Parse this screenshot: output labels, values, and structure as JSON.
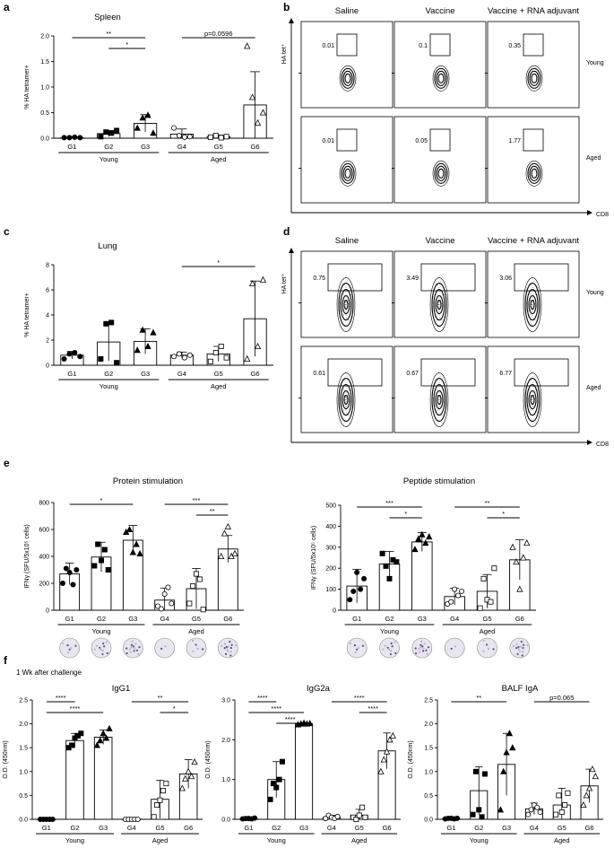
{
  "panels": {
    "a": {
      "label": "a",
      "title": "Spleen",
      "ylabel": "% HA tetramer+"
    },
    "b": {
      "label": "b",
      "ylabel": "HA tet⁺",
      "xlabel": "CD8",
      "cols": [
        "Saline",
        "Vaccine",
        "Vaccine + RNA adjuvant"
      ],
      "rows": [
        "Young",
        "Aged"
      ],
      "values": [
        [
          "0.01",
          "0.1",
          "0.35"
        ],
        [
          "0.01",
          "0.05",
          "1.77"
        ]
      ]
    },
    "c": {
      "label": "c",
      "title": "Lung",
      "ylabel": "% HA tetramer+"
    },
    "d": {
      "label": "d",
      "ylabel": "HA tet⁺",
      "xlabel": "CD8",
      "cols": [
        "Saline",
        "Vaccine",
        "Vaccine + RNA adjuvant"
      ],
      "rows": [
        "Young",
        "Aged"
      ],
      "values": [
        [
          "0.75",
          "3.49",
          "3.06"
        ],
        [
          "0.61",
          "0.67",
          "6.77"
        ]
      ]
    },
    "e": {
      "label": "e"
    },
    "f": {
      "label": "f",
      "note": "1 Wk after challenge"
    }
  },
  "colors": {
    "axis": "#000000",
    "spot_dark": "#5b4a86",
    "spot_light": "#b9b0d0",
    "well": "#e8e6ee"
  },
  "chart_data": [
    {
      "id": "a",
      "type": "bar",
      "title": "Spleen",
      "ylabel": "% HA tetramer+",
      "ylim": [
        0,
        2.0
      ],
      "yticks": [
        "0.0",
        "0.5",
        "1.0",
        "1.5",
        "2.0"
      ],
      "ytick_values": [
        0,
        0.5,
        1,
        1.5,
        2
      ],
      "categories": [
        "G1",
        "G2",
        "G3",
        "G4",
        "G5",
        "G6"
      ],
      "groups": [
        "Young",
        "Aged"
      ],
      "values": [
        0.01,
        0.09,
        0.29,
        0.08,
        0.03,
        0.65
      ],
      "errors": [
        0.02,
        0.06,
        0.17,
        0.1,
        0.03,
        0.65
      ],
      "points": [
        [
          0.01,
          0.01,
          0.02,
          0.01
        ],
        [
          0.03,
          0.12,
          0.1,
          0.15
        ],
        [
          0.2,
          0.4,
          0.45,
          0.1
        ],
        [
          0.2,
          0.05,
          0.02,
          0.03
        ],
        [
          0.02,
          0.05,
          0.01,
          0.03
        ],
        [
          1.8,
          0.8,
          0.3,
          0.5
        ]
      ],
      "significance": [
        {
          "from": 0,
          "to": 2,
          "label": "**"
        },
        {
          "from": 1,
          "to": 2,
          "label": "*"
        },
        {
          "from": 3,
          "to": 5,
          "label": "p=0.0596"
        }
      ]
    },
    {
      "id": "c",
      "type": "bar",
      "title": "Lung",
      "ylabel": "% HA tetramer+",
      "ylim": [
        0,
        8
      ],
      "yticks": [
        "0",
        "2",
        "4",
        "6",
        "8"
      ],
      "ytick_values": [
        0,
        2,
        4,
        6,
        8
      ],
      "categories": [
        "G1",
        "G2",
        "G3",
        "G4",
        "G5",
        "G6"
      ],
      "groups": [
        "Young",
        "Aged"
      ],
      "values": [
        0.8,
        1.85,
        1.9,
        0.8,
        0.9,
        3.7
      ],
      "errors": [
        0.3,
        1.5,
        1.0,
        0.25,
        0.6,
        3.0
      ],
      "points": [
        [
          0.5,
          0.9,
          1.0,
          0.7
        ],
        [
          0.5,
          3.3,
          3.4,
          0.2
        ],
        [
          1.2,
          2.8,
          1.5,
          2.6
        ],
        [
          0.7,
          0.9,
          0.6,
          0.8
        ],
        [
          0.3,
          1.0,
          1.5,
          0.6
        ],
        [
          0.5,
          6.5,
          1.5,
          6.8
        ]
      ],
      "significance": [
        {
          "from": 3,
          "to": 5,
          "label": "*"
        }
      ]
    },
    {
      "id": "e1",
      "type": "bar",
      "title": "Protein stimulation",
      "ylabel": "IFNγ (SFU/5x10⁵ cells)",
      "ylim": [
        0,
        800
      ],
      "yticks": [
        "0",
        "200",
        "400",
        "600",
        "800"
      ],
      "ytick_values": [
        0,
        200,
        400,
        600,
        800
      ],
      "categories": [
        "G1",
        "G2",
        "G3",
        "G4",
        "G5",
        "G6"
      ],
      "groups": [
        "Young",
        "Aged"
      ],
      "values": [
        270,
        395,
        520,
        75,
        160,
        455
      ],
      "errors": [
        80,
        110,
        110,
        90,
        150,
        100
      ],
      "points": [
        [
          200,
          310,
          280,
          190,
          300
        ],
        [
          330,
          490,
          370,
          450,
          300
        ],
        [
          580,
          600,
          430,
          490,
          420
        ],
        [
          30,
          10,
          120,
          170,
          50
        ],
        [
          50,
          180,
          270,
          230,
          5
        ],
        [
          400,
          570,
          620,
          400,
          420
        ]
      ],
      "significance": [
        {
          "from": 0,
          "to": 2,
          "label": "*"
        },
        {
          "from": 3,
          "to": 5,
          "label": "***"
        },
        {
          "from": 4,
          "to": 5,
          "label": "**"
        }
      ]
    },
    {
      "id": "e2",
      "type": "bar",
      "title": "Peptide stimulation",
      "ylabel": "IFNγ (SFU/5x10⁵ cells)",
      "ylim": [
        0,
        500
      ],
      "yticks": [
        "0",
        "100",
        "200",
        "300",
        "400",
        "500"
      ],
      "ytick_values": [
        0,
        100,
        200,
        300,
        400,
        500
      ],
      "categories": [
        "G1",
        "G2",
        "G3",
        "G4",
        "G5",
        "G6"
      ],
      "groups": [
        "Young",
        "Aged"
      ],
      "values": [
        115,
        220,
        325,
        65,
        90,
        240
      ],
      "errors": [
        80,
        60,
        45,
        40,
        80,
        95
      ],
      "points": [
        [
          50,
          90,
          180,
          100,
          150
        ],
        [
          270,
          210,
          150,
          240,
          230
        ],
        [
          290,
          340,
          360,
          320,
          350
        ],
        [
          30,
          40,
          100,
          70,
          90
        ],
        [
          10,
          150,
          50,
          40,
          200
        ],
        [
          300,
          230,
          100,
          250,
          320
        ]
      ],
      "significance": [
        {
          "from": 0,
          "to": 2,
          "label": "***"
        },
        {
          "from": 1,
          "to": 2,
          "label": "*"
        },
        {
          "from": 3,
          "to": 5,
          "label": "**"
        },
        {
          "from": 4,
          "to": 5,
          "label": "*"
        }
      ]
    },
    {
      "id": "f1",
      "type": "bar",
      "title": "IgG1",
      "ylabel": "O.D. (450nm)",
      "ylim": [
        0,
        2.5
      ],
      "yticks": [
        "0.0",
        "0.5",
        "1.0",
        "1.5",
        "2.0",
        "2.5"
      ],
      "ytick_values": [
        0,
        0.5,
        1,
        1.5,
        2,
        2.5
      ],
      "categories": [
        "G1",
        "G2",
        "G3",
        "G4",
        "G5",
        "G6"
      ],
      "groups": [
        "Young",
        "Aged"
      ],
      "values": [
        0.0,
        1.65,
        1.72,
        0.0,
        0.42,
        0.95
      ],
      "errors": [
        0.01,
        0.15,
        0.15,
        0.01,
        0.4,
        0.3
      ],
      "points": [
        [
          0,
          0,
          0,
          0,
          0
        ],
        [
          1.5,
          1.55,
          1.7,
          1.75,
          1.8
        ],
        [
          1.55,
          1.65,
          1.8,
          1.7,
          1.9
        ],
        [
          0,
          0,
          0,
          0,
          0
        ],
        [
          0.05,
          0.3,
          0.4,
          0.6,
          0.75
        ],
        [
          0.65,
          0.85,
          1.0,
          0.9,
          1.2
        ]
      ],
      "significance": [
        {
          "from": 0,
          "to": 1,
          "label": "****"
        },
        {
          "from": 0,
          "to": 2,
          "label": "****"
        },
        {
          "from": 3,
          "to": 5,
          "label": "**"
        },
        {
          "from": 4,
          "to": 5,
          "label": "*"
        }
      ]
    },
    {
      "id": "f2",
      "type": "bar",
      "title": "IgG2a",
      "ylabel": "O.D. (450nm)",
      "ylim": [
        0,
        3.0
      ],
      "yticks": [
        "0.0",
        "1.0",
        "2.0",
        "3.0"
      ],
      "ytick_values": [
        0,
        1,
        2,
        3
      ],
      "categories": [
        "G1",
        "G2",
        "G3",
        "G4",
        "G5",
        "G6"
      ],
      "groups": [
        "Young",
        "Aged"
      ],
      "values": [
        0.02,
        1.0,
        2.4,
        0.05,
        0.1,
        1.72
      ],
      "errors": [
        0.02,
        0.45,
        0.03,
        0.05,
        0.15,
        0.45
      ],
      "points": [
        [
          0.01,
          0.02,
          0.02,
          0.01,
          0.03
        ],
        [
          0.5,
          0.9,
          0.8,
          1.0,
          1.45
        ],
        [
          2.38,
          2.4,
          2.42,
          2.4,
          2.41
        ],
        [
          0.02,
          0.1,
          0.05,
          0.02,
          0.07
        ],
        [
          0.05,
          0.0,
          0.1,
          0.3,
          0.05
        ],
        [
          1.2,
          1.5,
          1.7,
          2.0,
          2.1
        ]
      ],
      "significance": [
        {
          "from": 0,
          "to": 1,
          "label": "****"
        },
        {
          "from": 0,
          "to": 2,
          "label": "****"
        },
        {
          "from": 1,
          "to": 2,
          "label": "****"
        },
        {
          "from": 3,
          "to": 5,
          "label": "****"
        },
        {
          "from": 4,
          "to": 5,
          "label": "****"
        }
      ]
    },
    {
      "id": "f3",
      "type": "bar",
      "title": "BALF IgA",
      "ylabel": "O.D. (450nm)",
      "ylim": [
        0,
        2.5
      ],
      "yticks": [
        "0.0",
        "0.5",
        "1.0",
        "1.5",
        "2.0",
        "2.5"
      ],
      "ytick_values": [
        0,
        0.5,
        1,
        1.5,
        2,
        2.5
      ],
      "categories": [
        "G1",
        "G2",
        "G3",
        "G4",
        "G5",
        "G6"
      ],
      "groups": [
        "Young",
        "Aged"
      ],
      "values": [
        0.02,
        0.6,
        1.15,
        0.22,
        0.3,
        0.7
      ],
      "errors": [
        0.01,
        0.5,
        0.65,
        0.12,
        0.35,
        0.35
      ],
      "points": [
        [
          0.01,
          0.02,
          0.02,
          0.01,
          0.02
        ],
        [
          0.1,
          1.0,
          0.2,
          0.05,
          0.95
        ],
        [
          0.2,
          1.0,
          1.4,
          1.8,
          1.5
        ],
        [
          0.1,
          0.2,
          0.3,
          0.25,
          0.15
        ],
        [
          0.1,
          0.5,
          0.15,
          0.3,
          0.55
        ],
        [
          0.3,
          0.5,
          0.65,
          1.05,
          0.9
        ]
      ],
      "significance": [
        {
          "from": 0,
          "to": 2,
          "label": "**"
        },
        {
          "from": 3,
          "to": 5,
          "label": "p=0.065"
        }
      ]
    }
  ]
}
